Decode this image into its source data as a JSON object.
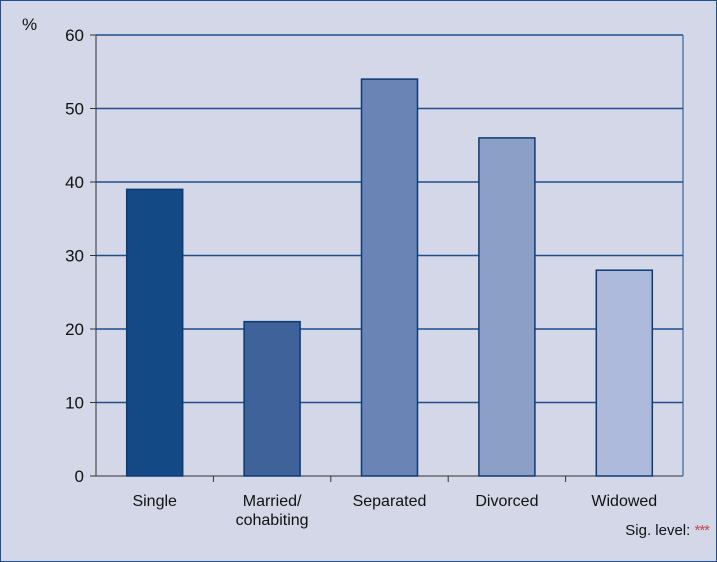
{
  "chart_data": {
    "type": "bar",
    "ylabel": "%",
    "categories": [
      "Single",
      "Married/\ncohabiting",
      "Separated",
      "Divorced",
      "Widowed"
    ],
    "values": [
      39,
      21,
      54,
      46,
      28
    ],
    "ylim": [
      0,
      60
    ],
    "yticks": [
      0,
      10,
      20,
      30,
      40,
      50,
      60
    ],
    "grid": true,
    "bar_colors": [
      "#134a86",
      "#3e6299",
      "#6a84b5",
      "#8b9fc7",
      "#adbadb"
    ],
    "note": {
      "label": "Sig. level:",
      "value": "***"
    }
  }
}
